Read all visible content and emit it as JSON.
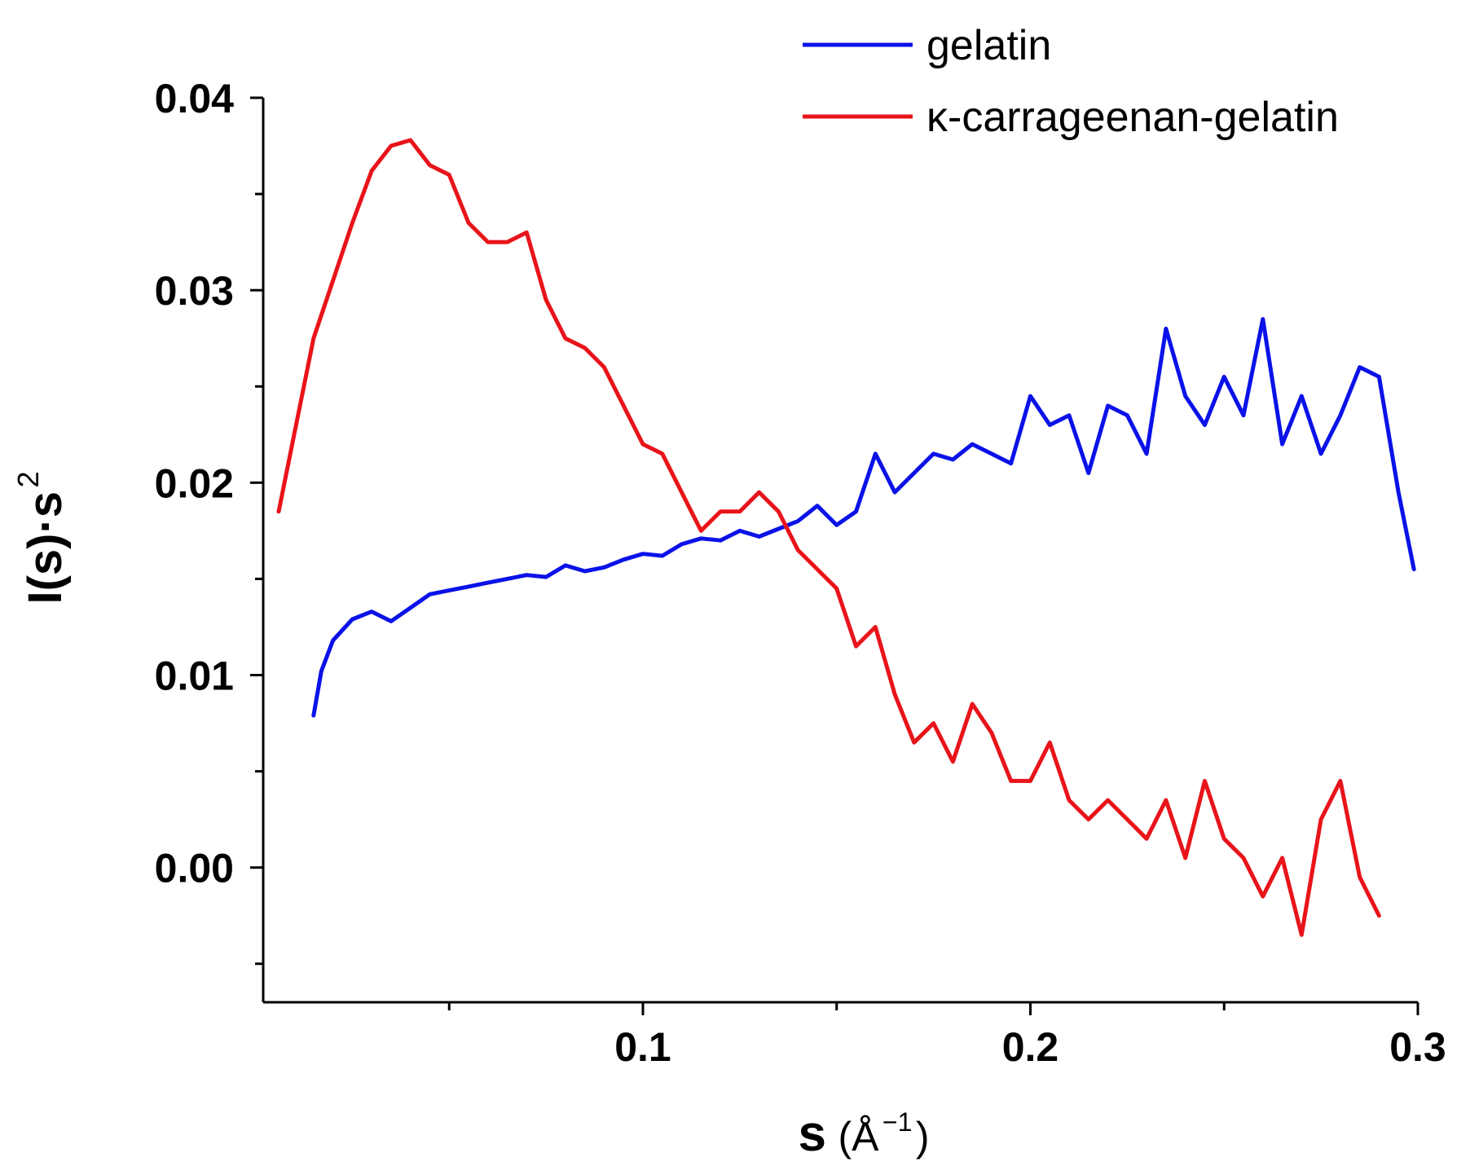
{
  "chart_data": {
    "type": "line",
    "xlabel": "s",
    "xlabel_unit": "(Å",
    "xlabel_unit_exp": "−1",
    "xlabel_unit_close": ")",
    "ylabel_main": "I(s)·s",
    "ylabel_exp": "2",
    "xlim": [
      0.002,
      0.3
    ],
    "ylim": [
      -0.007,
      0.04
    ],
    "x_ticks": [
      {
        "value": 0.1,
        "label": "0.1"
      },
      {
        "value": 0.2,
        "label": "0.2"
      },
      {
        "value": 0.3,
        "label": "0.3"
      }
    ],
    "x_minor_ticks": [
      0.05,
      0.15,
      0.25
    ],
    "y_ticks": [
      {
        "value": 0.0,
        "label": "0.00"
      },
      {
        "value": 0.01,
        "label": "0.01"
      },
      {
        "value": 0.02,
        "label": "0.02"
      },
      {
        "value": 0.03,
        "label": "0.03"
      },
      {
        "value": 0.04,
        "label": "0.04"
      }
    ],
    "y_minor_ticks": [
      -0.005,
      0.005,
      0.015,
      0.025,
      0.035
    ],
    "legend_position": "top-right",
    "grid": false,
    "series": [
      {
        "name": "gelatin",
        "color": "#0a12e8",
        "x": [
          0.015,
          0.017,
          0.02,
          0.025,
          0.03,
          0.035,
          0.04,
          0.045,
          0.05,
          0.055,
          0.06,
          0.065,
          0.07,
          0.075,
          0.08,
          0.085,
          0.09,
          0.095,
          0.1,
          0.105,
          0.11,
          0.115,
          0.12,
          0.125,
          0.13,
          0.135,
          0.14,
          0.145,
          0.15,
          0.155,
          0.16,
          0.165,
          0.17,
          0.175,
          0.18,
          0.185,
          0.19,
          0.195,
          0.2,
          0.205,
          0.21,
          0.215,
          0.22,
          0.225,
          0.23,
          0.235,
          0.24,
          0.245,
          0.25,
          0.255,
          0.26,
          0.265,
          0.27,
          0.275,
          0.28,
          0.285,
          0.29,
          0.295,
          0.299
        ],
        "y": [
          0.0079,
          0.0102,
          0.0118,
          0.0129,
          0.0133,
          0.0128,
          0.0135,
          0.0142,
          0.0144,
          0.0146,
          0.0148,
          0.015,
          0.0152,
          0.0151,
          0.0157,
          0.0154,
          0.0156,
          0.016,
          0.0163,
          0.0162,
          0.0168,
          0.0171,
          0.017,
          0.0175,
          0.0172,
          0.0176,
          0.018,
          0.0188,
          0.0178,
          0.0185,
          0.0215,
          0.0195,
          0.0205,
          0.0215,
          0.0212,
          0.022,
          0.0215,
          0.021,
          0.0245,
          0.023,
          0.0235,
          0.0205,
          0.024,
          0.0235,
          0.0215,
          0.028,
          0.0245,
          0.023,
          0.0255,
          0.0235,
          0.0285,
          0.022,
          0.0245,
          0.0215,
          0.0235,
          0.026,
          0.0255,
          0.0195,
          0.0155
        ]
      },
      {
        "name": "κ-carrageenan-gelatin",
        "color": "#e8141a",
        "x": [
          0.006,
          0.01,
          0.015,
          0.02,
          0.025,
          0.03,
          0.035,
          0.04,
          0.045,
          0.05,
          0.055,
          0.06,
          0.065,
          0.07,
          0.075,
          0.08,
          0.085,
          0.09,
          0.095,
          0.1,
          0.105,
          0.11,
          0.115,
          0.12,
          0.125,
          0.13,
          0.135,
          0.14,
          0.145,
          0.15,
          0.155,
          0.16,
          0.165,
          0.17,
          0.175,
          0.18,
          0.185,
          0.19,
          0.195,
          0.2,
          0.205,
          0.21,
          0.215,
          0.22,
          0.225,
          0.23,
          0.235,
          0.24,
          0.245,
          0.25,
          0.255,
          0.26,
          0.265,
          0.27,
          0.275,
          0.28,
          0.285,
          0.29
        ],
        "y": [
          0.0185,
          0.0225,
          0.0275,
          0.0305,
          0.0335,
          0.0362,
          0.0375,
          0.0378,
          0.0365,
          0.036,
          0.0335,
          0.0325,
          0.0325,
          0.033,
          0.0295,
          0.0275,
          0.027,
          0.026,
          0.024,
          0.022,
          0.0215,
          0.0195,
          0.0175,
          0.0185,
          0.0185,
          0.0195,
          0.0185,
          0.0165,
          0.0155,
          0.0145,
          0.0115,
          0.0125,
          0.009,
          0.0065,
          0.0075,
          0.0055,
          0.0085,
          0.007,
          0.0045,
          0.0045,
          0.0065,
          0.0035,
          0.0025,
          0.0035,
          0.0025,
          0.0015,
          0.0035,
          0.0005,
          0.0045,
          0.0015,
          0.0005,
          -0.0015,
          0.0005,
          -0.0035,
          0.0025,
          0.0045,
          -0.0005,
          -0.0025
        ]
      }
    ]
  }
}
